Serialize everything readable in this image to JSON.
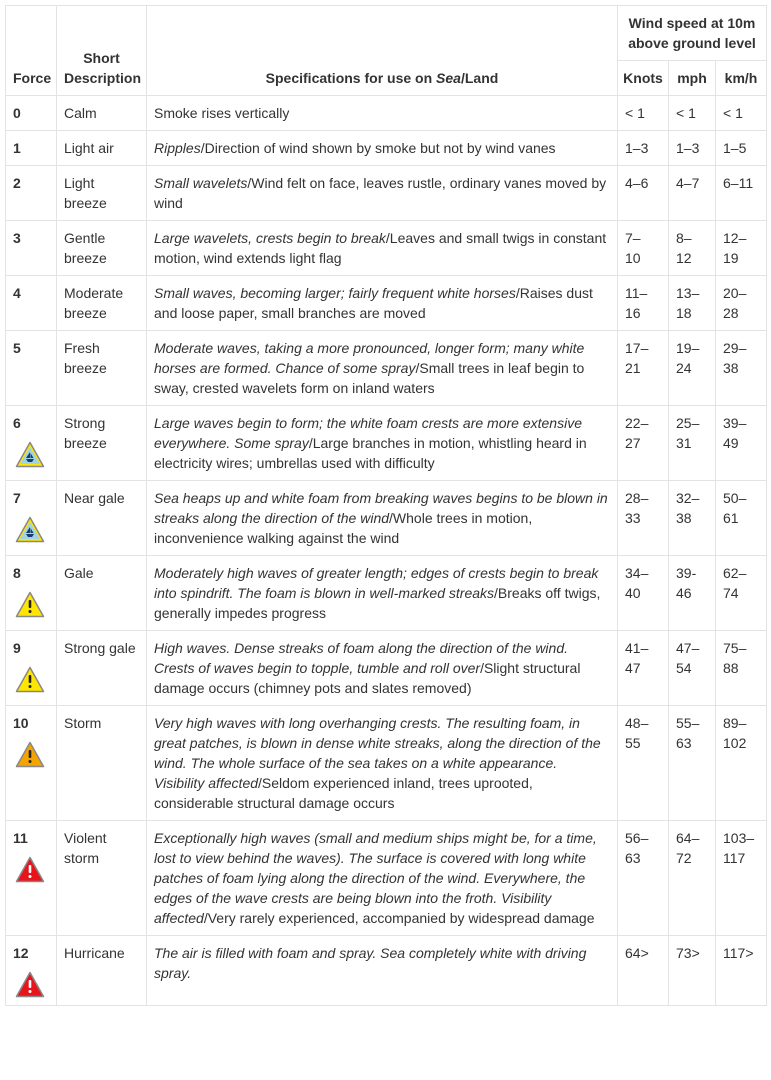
{
  "header": {
    "force": "Force",
    "short_description": "Short Description",
    "specifications_prefix": "Specifications for use on ",
    "specifications_sea": "Sea",
    "specifications_suffix": "/Land",
    "wind_speed": "Wind speed at 10m above ground level",
    "knots": "Knots",
    "mph": "mph",
    "kmh": "km/h"
  },
  "icon_colors": {
    "yellow": "#ffe600",
    "orange": "#f5a300",
    "red": "#e8141c",
    "water": "#9fd4e6"
  },
  "rows": [
    {
      "force": "0",
      "desc": "Calm",
      "sea": "",
      "land": "Smoke rises vertically",
      "knots": "< 1",
      "mph": "< 1",
      "kmh": "< 1",
      "icon": ""
    },
    {
      "force": "1",
      "desc": "Light air",
      "sea": "Ripples",
      "land": "Direction of wind shown by smoke but not by wind vanes",
      "knots": "1–3",
      "mph": "1–3",
      "kmh": "1–5",
      "icon": ""
    },
    {
      "force": "2",
      "desc": "Light breeze",
      "sea": "Small wavelets",
      "land": "Wind felt on face, leaves rustle, ordinary vanes moved by wind",
      "knots": "4–6",
      "mph": "4–7",
      "kmh": "6–11",
      "icon": ""
    },
    {
      "force": "3",
      "desc": "Gentle breeze",
      "sea": "Large wavelets, crests begin to break",
      "land": "Leaves and small twigs in constant motion, wind extends light flag",
      "knots": "7–10",
      "mph": "8–12",
      "kmh": "12–19",
      "icon": ""
    },
    {
      "force": "4",
      "desc": "Moderate breeze",
      "sea": "Small waves, becoming larger; fairly frequent white horses",
      "land": "Raises dust and loose paper, small branches are moved",
      "knots": "11–16",
      "mph": "13–18",
      "kmh": "20–28",
      "icon": ""
    },
    {
      "force": "5",
      "desc": "Fresh breeze",
      "sea": "Moderate waves, taking a more pronounced, longer form; many white horses are formed. Chance of some spray",
      "land": "Small trees in leaf begin to sway, crested wavelets form on inland waters",
      "knots": "17–21",
      "mph": "19–24",
      "kmh": "29–38",
      "icon": ""
    },
    {
      "force": "6",
      "desc": "Strong breeze",
      "sea": "Large waves begin to form; the white foam crests are more extensive everywhere. Some spray",
      "land": "Large branches in motion, whistling heard in electricity wires; umbrellas used with difficulty",
      "knots": "22–27",
      "mph": "25–31",
      "kmh": "39–49",
      "icon": "boat-warning-icon"
    },
    {
      "force": "7",
      "desc": "Near gale",
      "sea": "Sea heaps up and white foam from breaking waves begins to be blown in streaks along the direction of the wind",
      "land": "Whole trees in motion, inconvenience walking against the wind",
      "knots": "28–33",
      "mph": "32–38",
      "kmh": "50–61",
      "icon": "boat-warning-icon"
    },
    {
      "force": "8",
      "desc": "Gale",
      "sea": "Moderately high waves of greater length; edges of crests begin to break into spindrift. The foam is blown in well-marked streaks",
      "land": "Breaks off twigs, generally impedes progress",
      "knots": "34–40",
      "mph": "39-46",
      "kmh": "62–74",
      "icon": "yellow-warning-icon"
    },
    {
      "force": "9",
      "desc": "Strong gale",
      "sea": "High waves. Dense streaks of foam along the direction of the wind. Crests of waves begin to topple, tumble and roll over",
      "land": "Slight structural damage occurs (chimney pots and slates removed)",
      "knots": "41–47",
      "mph": "47–54",
      "kmh": "75–88",
      "icon": "yellow-warning-icon"
    },
    {
      "force": "10",
      "desc": "Storm",
      "sea": "Very high waves with long overhanging crests. The resulting foam, in great patches, is blown in dense white streaks, along the direction of the wind. The whole surface of the sea takes on a white appearance. Visibility affected",
      "land": "Seldom experienced inland, trees uprooted, considerable structural damage occurs",
      "knots": "48–55",
      "mph": "55–63",
      "kmh": "89–102",
      "icon": "orange-warning-icon"
    },
    {
      "force": "11",
      "desc": "Violent storm",
      "sea": "Exceptionally high waves (small and medium ships might be, for a time, lost to view behind the waves). The surface is covered with long white patches of foam lying along the direction of the wind. Everywhere, the edges of the wave crests are being blown into the froth. Visibility affected",
      "land": "Very rarely experienced, accompanied by widespread damage",
      "knots": "56–63",
      "mph": "64–72",
      "kmh": "103–117",
      "icon": "red-warning-icon"
    },
    {
      "force": "12",
      "desc": "Hurricane",
      "sea": "The air is filled with foam and spray. Sea completely white with driving spray.",
      "land": "",
      "knots": "64>",
      "mph": "73>",
      "kmh": "117>",
      "icon": "red-warning-icon"
    }
  ]
}
